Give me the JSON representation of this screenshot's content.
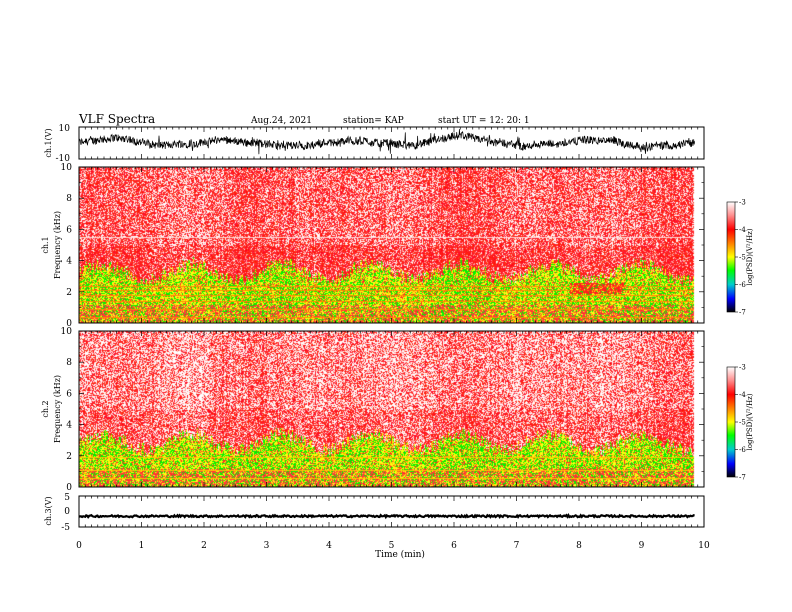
{
  "header": {
    "title": "VLF Spectra",
    "date": "Aug.24, 2021",
    "station": "station= KAP",
    "start": "start  UT =   12: 20: 1"
  },
  "chart_data": [
    {
      "type": "line",
      "name": "ch1_waveform",
      "ylabel": "ch.1(V)",
      "ylim": [
        -10,
        10
      ],
      "yticks": [
        "10",
        "-10"
      ],
      "xlim": [
        0,
        10
      ],
      "x_data_end": 9.85,
      "series": [
        {
          "values_summary": "noisy signal around 0 V, excursions roughly -8 to +7 V"
        }
      ]
    },
    {
      "type": "heatmap",
      "name": "ch1_spectrogram",
      "ylabel": "ch.1\nFrequency (kHz)",
      "ylim": [
        0,
        10
      ],
      "yticks": [
        "0",
        "2",
        "4",
        "6",
        "8",
        "10"
      ],
      "xlim": [
        0,
        10
      ],
      "x_data_end": 9.85,
      "colorbar": {
        "label": "log(PSD)(V²/Hz)",
        "range": [
          -7,
          -3
        ],
        "ticks": [
          "-3",
          "-4",
          "-5",
          "-6",
          "-7"
        ]
      },
      "bands_summary": "red background above ~3.5 kHz, yellow/green band 1.5-3.5 kHz, horizontal interference lines below 2.5 kHz; horizontal line near 5.5 kHz"
    },
    {
      "type": "heatmap",
      "name": "ch2_spectrogram",
      "ylabel": "ch.2\nFrequency (kHz)",
      "ylim": [
        0,
        10
      ],
      "yticks": [
        "0",
        "2",
        "4",
        "6",
        "8",
        "10"
      ],
      "xlim": [
        0,
        10
      ],
      "x_data_end": 9.85,
      "colorbar": {
        "label": "log(PSD)(V²/Hz)",
        "range": [
          -7,
          -3
        ],
        "ticks": [
          "-3",
          "-4",
          "-5",
          "-6",
          "-7"
        ]
      },
      "bands_summary": "red speckle background above ~3 kHz, yellow/green band 0.5-3 kHz"
    },
    {
      "type": "line",
      "name": "ch3_waveform",
      "ylabel": "ch.3(V)",
      "ylim": [
        -5,
        5
      ],
      "yticks": [
        "5",
        "0",
        "-5"
      ],
      "xlim": [
        0,
        10
      ],
      "x_data_end": 9.85,
      "series": [
        {
          "values_summary": "near-constant trace at about -1.5 V"
        }
      ]
    }
  ],
  "xaxis": {
    "label": "Time (min)",
    "ticks": [
      "0",
      "1",
      "2",
      "3",
      "4",
      "5",
      "6",
      "7",
      "8",
      "9",
      "10"
    ]
  }
}
